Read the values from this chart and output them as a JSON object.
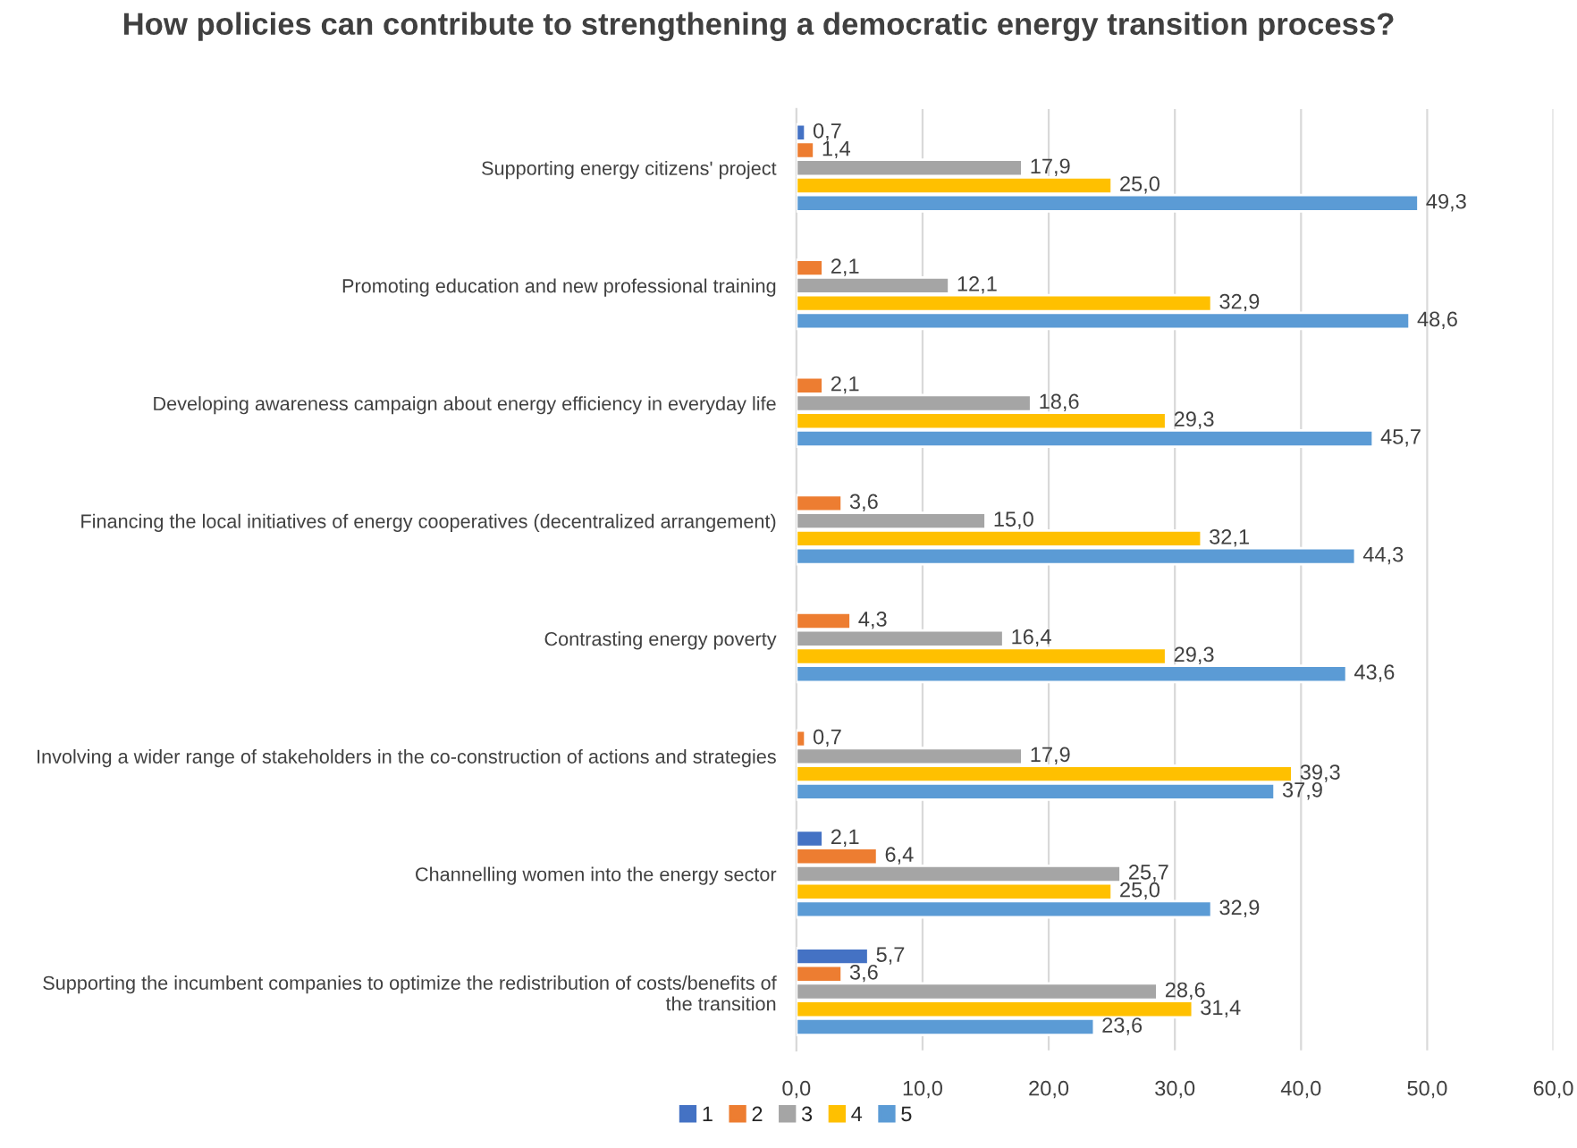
{
  "chart_data": {
    "type": "bar",
    "orientation": "horizontal",
    "title": "How policies can contribute to strengthening a democratic energy transition process?",
    "categories": [
      "Supporting energy citizens' project",
      "Promoting education and new professional training",
      "Developing awareness campaign about energy efficiency in everyday life",
      "Financing the local initiatives of energy cooperatives (decentralized arrangement)",
      "Contrasting energy poverty",
      "Involving a wider range of stakeholders in the co-construction of actions and strategies",
      "Channelling women into the energy sector",
      "Supporting the incumbent companies to optimize the redistribution of costs/benefits of\nthe transition"
    ],
    "series": [
      {
        "name": "1",
        "color": "#4472c4",
        "values": [
          0.7,
          null,
          null,
          null,
          null,
          null,
          2.1,
          5.7
        ],
        "value_labels": [
          "0,7",
          null,
          null,
          null,
          null,
          null,
          "2,1",
          "5,7"
        ]
      },
      {
        "name": "2",
        "color": "#ed7d31",
        "values": [
          1.4,
          2.1,
          2.1,
          3.6,
          4.3,
          0.7,
          6.4,
          3.6
        ],
        "value_labels": [
          "1,4",
          "2,1",
          "2,1",
          "3,6",
          "4,3",
          "0,7",
          "6,4",
          "3,6"
        ]
      },
      {
        "name": "3",
        "color": "#a5a5a5",
        "values": [
          17.9,
          12.1,
          18.6,
          15.0,
          16.4,
          17.9,
          25.7,
          28.6
        ],
        "value_labels": [
          "17,9",
          "12,1",
          "18,6",
          "15,0",
          "16,4",
          "17,9",
          "25,7",
          "28,6"
        ]
      },
      {
        "name": "4",
        "color": "#ffc000",
        "values": [
          25.0,
          32.9,
          29.3,
          32.1,
          29.3,
          39.3,
          25.0,
          31.4
        ],
        "value_labels": [
          "25,0",
          "32,9",
          "29,3",
          "32,1",
          "29,3",
          "39,3",
          "25,0",
          "31,4"
        ]
      },
      {
        "name": "5",
        "color": "#5b9bd5",
        "values": [
          49.3,
          48.6,
          45.7,
          44.3,
          43.6,
          37.9,
          32.9,
          23.6
        ],
        "value_labels": [
          "49,3",
          "48,6",
          "45,7",
          "44,3",
          "43,6",
          "37,9",
          "32,9",
          "23,6"
        ]
      }
    ],
    "xlim": [
      0,
      60
    ],
    "xticks": [
      {
        "value": 0,
        "label": "0,0"
      },
      {
        "value": 10,
        "label": "10,0"
      },
      {
        "value": 20,
        "label": "20,0"
      },
      {
        "value": 30,
        "label": "30,0"
      },
      {
        "value": 40,
        "label": "40,0"
      },
      {
        "value": 50,
        "label": "50,0"
      },
      {
        "value": 60,
        "label": "60,0"
      }
    ],
    "grid": "x",
    "legend": "bottom"
  }
}
